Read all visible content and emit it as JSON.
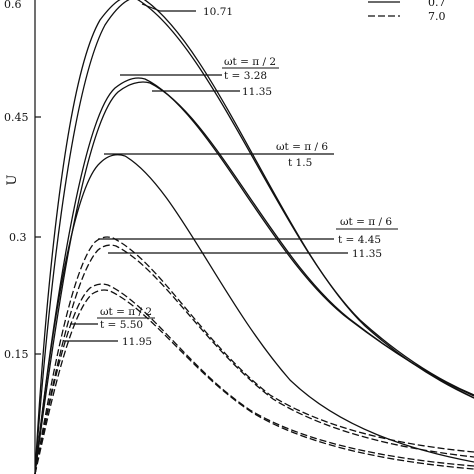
{
  "chart_data": {
    "type": "line",
    "ylabel": "U",
    "ylim": [
      0,
      0.6
    ],
    "ytick_labels": [
      {
        "value": 0.6,
        "label": "0.6"
      },
      {
        "value": 0.45,
        "label": "0.45"
      },
      {
        "value": 0.3,
        "label": "0.3"
      },
      {
        "value": 0.15,
        "label": "0.15"
      }
    ],
    "legend": {
      "placement": "top-right",
      "entries": [
        {
          "label": "0.7",
          "style": "solid"
        },
        {
          "label": "7.0",
          "style": "dashed"
        }
      ]
    },
    "series": [
      {
        "style": "solid",
        "peak_y": 0.6,
        "peak_x": 0.145,
        "end_y": 0.094
      },
      {
        "style": "solid",
        "peak_y": 0.6,
        "peak_x": 0.16,
        "end_y": 0.097
      },
      {
        "style": "solid",
        "peak_y": 0.5,
        "peak_x": 0.175,
        "end_y": 0.094
      },
      {
        "style": "solid",
        "peak_y": 0.495,
        "peak_x": 0.185,
        "end_y": 0.092
      },
      {
        "style": "solid",
        "peak_y": 0.403,
        "peak_x": 0.145,
        "end_y": 0.016
      },
      {
        "style": "dashed",
        "peak_y": 0.3,
        "peak_x": 0.135,
        "end_y": 0.032
      },
      {
        "style": "dashed",
        "peak_y": 0.29,
        "peak_x": 0.14,
        "end_y": 0.024
      },
      {
        "style": "dashed",
        "peak_y": 0.24,
        "peak_x": 0.13,
        "end_y": 0.01
      },
      {
        "style": "dashed",
        "peak_y": 0.232,
        "peak_x": 0.135,
        "end_y": 0.006
      }
    ],
    "annotations": [
      {
        "lines": [
          "10.71"
        ]
      },
      {
        "lines": [
          "ωt = π / 2",
          "t = 3.28",
          "11.35"
        ]
      },
      {
        "lines": [
          "ωt = π / 6",
          "t   1.5"
        ]
      },
      {
        "lines": [
          "ωt = π / 6",
          "t = 4.45",
          "11.35"
        ]
      },
      {
        "lines": [
          "ωt = π / 2",
          "t = 5.50",
          "11.95"
        ]
      }
    ]
  }
}
